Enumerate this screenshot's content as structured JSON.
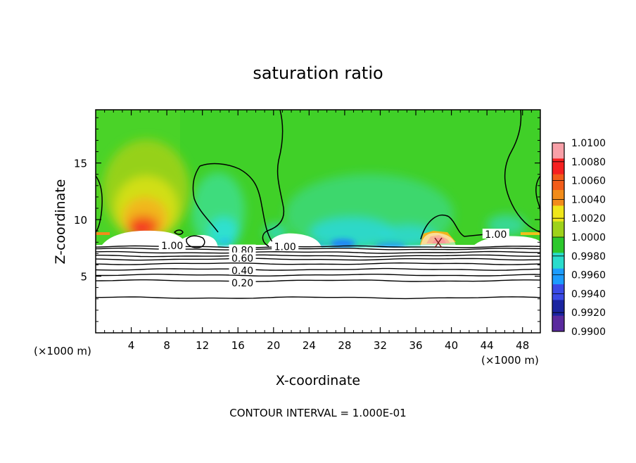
{
  "chart_data": {
    "type": "heatmap",
    "title": "saturation ratio",
    "xlabel": "X-coordinate",
    "ylabel": "Z-coordinate",
    "x_unit_left": "(×1000 m)",
    "x_unit_right": "(×1000 m)",
    "footer": "CONTOUR INTERVAL = 1.000E-01",
    "x_ticks": [
      4,
      8,
      12,
      16,
      20,
      24,
      28,
      32,
      36,
      40,
      44,
      48
    ],
    "y_ticks": [
      5,
      10,
      15
    ],
    "xlim": [
      0,
      50
    ],
    "ylim": [
      0,
      19.7
    ],
    "grid": false,
    "colorbar": {
      "labels": [
        "1.0100",
        "1.0080",
        "1.0060",
        "1.0040",
        "1.0020",
        "1.0000",
        "0.9980",
        "0.9960",
        "0.9940",
        "0.9920",
        "0.9900"
      ],
      "colors": [
        "#f8a0a8",
        "#f52020",
        "#f25c1a",
        "#f28c1a",
        "#f0e61a",
        "#9ed21a",
        "#2cc82c",
        "#2adccc",
        "#1c9cff",
        "#3a4ae6",
        "#1a24a0",
        "#5a2a9e"
      ]
    },
    "contour_labels": [
      {
        "text": "1.00",
        "x": 8.6,
        "y": 7.7
      },
      {
        "text": "1.00",
        "x": 21.3,
        "y": 7.6
      },
      {
        "text": "1.00",
        "x": 45.0,
        "y": 8.7
      },
      {
        "text": "0.80",
        "x": 16.5,
        "y": 7.3
      },
      {
        "text": "0.60",
        "x": 16.5,
        "y": 6.6
      },
      {
        "text": "0.40",
        "x": 16.5,
        "y": 5.5
      },
      {
        "text": "0.20",
        "x": 16.5,
        "y": 4.4
      }
    ],
    "contour_levels": [
      {
        "level": 1.0,
        "y": 7.6
      },
      {
        "level": 0.9,
        "y": 7.4
      },
      {
        "level": 0.8,
        "y": 7.1
      },
      {
        "level": 0.7,
        "y": 6.8
      },
      {
        "level": 0.6,
        "y": 6.5
      },
      {
        "level": 0.5,
        "y": 6.1
      },
      {
        "level": 0.4,
        "y": 5.6
      },
      {
        "level": 0.3,
        "y": 5.1
      },
      {
        "level": 0.2,
        "y": 4.6
      },
      {
        "level": 0.1,
        "y": 3.1
      }
    ]
  }
}
